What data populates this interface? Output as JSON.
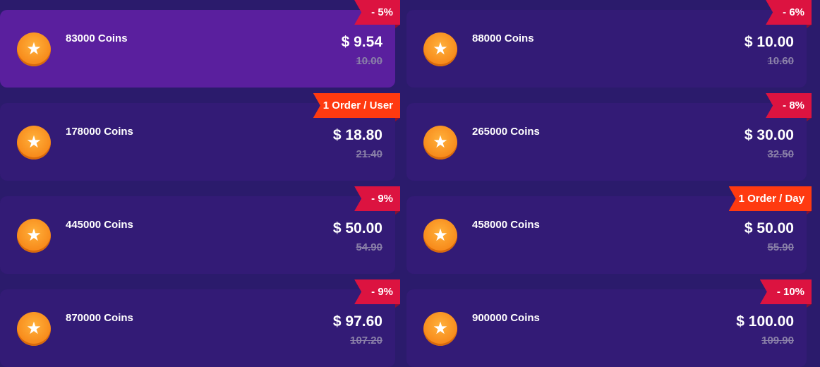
{
  "accent": "#5a1f9e",
  "badge_colors": {
    "discount": "#dc1340",
    "limit": "#ff3a10"
  },
  "packages": [
    {
      "coins": "83000 Coins",
      "price": "$ 9.54",
      "old_price": "10.00",
      "badge": "- 5%",
      "badge_type": "red",
      "selected": true,
      "icon": "star-coin-icon"
    },
    {
      "coins": "88000 Coins",
      "price": "$ 10.00",
      "old_price": "10.60",
      "badge": "- 6%",
      "badge_type": "red",
      "selected": false,
      "icon": "star-coin-icon"
    },
    {
      "coins": "178000 Coins",
      "price": "$ 18.80",
      "old_price": "21.40",
      "badge": "1 Order / User",
      "badge_type": "orange",
      "selected": false,
      "icon": "star-coin-icon"
    },
    {
      "coins": "265000 Coins",
      "price": "$ 30.00",
      "old_price": "32.50",
      "badge": "- 8%",
      "badge_type": "red",
      "selected": false,
      "icon": "star-coin-icon"
    },
    {
      "coins": "445000 Coins",
      "price": "$ 50.00",
      "old_price": "54.90",
      "badge": "- 9%",
      "badge_type": "red",
      "selected": false,
      "icon": "star-coin-icon"
    },
    {
      "coins": "458000 Coins",
      "price": "$ 50.00",
      "old_price": "55.90",
      "badge": "1 Order / Day",
      "badge_type": "orange",
      "selected": false,
      "icon": "star-coin-icon"
    },
    {
      "coins": "870000 Coins",
      "price": "$ 97.60",
      "old_price": "107.20",
      "badge": "- 9%",
      "badge_type": "red",
      "selected": false,
      "icon": "star-coin-icon"
    },
    {
      "coins": "900000 Coins",
      "price": "$ 100.00",
      "old_price": "109.90",
      "badge": "- 10%",
      "badge_type": "red",
      "selected": false,
      "icon": "star-coin-icon"
    }
  ]
}
